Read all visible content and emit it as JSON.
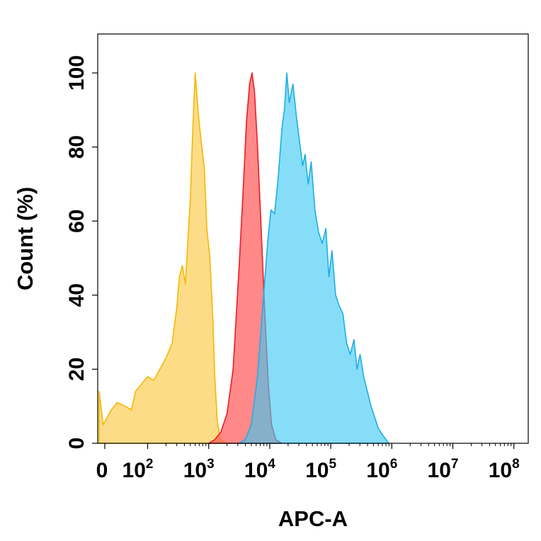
{
  "chart_data": {
    "type": "area",
    "title": "",
    "xlabel": "APC-A",
    "ylabel": "Count (%)",
    "x_scale": "biexponential (0 then log10)",
    "x_tick_labels": [
      {
        "base": "0",
        "exp": ""
      },
      {
        "base": "10",
        "exp": "2"
      },
      {
        "base": "10",
        "exp": "3"
      },
      {
        "base": "10",
        "exp": "4"
      },
      {
        "base": "10",
        "exp": "5"
      },
      {
        "base": "10",
        "exp": "6"
      },
      {
        "base": "10",
        "exp": "7"
      },
      {
        "base": "10",
        "exp": "8"
      }
    ],
    "x_ticks_log10": [
      null,
      2,
      3,
      4,
      5,
      6,
      7,
      8
    ],
    "y_ticks": [
      "0",
      "20",
      "40",
      "60",
      "80",
      "100"
    ],
    "ylim": [
      0,
      100
    ],
    "grid": false,
    "legend": "none",
    "series": [
      {
        "color": "#FCCB4F",
        "fill_opacity": 0.68,
        "stroke": "#F5B800",
        "points": [
          [
            0.0,
            14
          ],
          [
            0.2,
            5
          ],
          [
            0.6,
            9
          ],
          [
            0.9,
            11
          ],
          [
            1.3,
            10
          ],
          [
            1.6,
            9
          ],
          [
            1.8,
            14
          ],
          [
            2.0,
            18
          ],
          [
            2.1,
            17
          ],
          [
            2.2,
            20
          ],
          [
            2.3,
            23
          ],
          [
            2.35,
            25
          ],
          [
            2.4,
            27
          ],
          [
            2.48,
            37
          ],
          [
            2.52,
            45
          ],
          [
            2.57,
            48
          ],
          [
            2.62,
            43
          ],
          [
            2.66,
            55
          ],
          [
            2.7,
            66
          ],
          [
            2.74,
            85
          ],
          [
            2.78,
            100
          ],
          [
            2.83,
            89
          ],
          [
            2.88,
            81
          ],
          [
            2.93,
            74
          ],
          [
            2.97,
            58
          ],
          [
            3.02,
            50
          ],
          [
            3.07,
            33
          ],
          [
            3.1,
            18
          ],
          [
            3.14,
            6
          ],
          [
            3.18,
            2
          ],
          [
            3.22,
            0.5
          ],
          [
            3.3,
            0
          ]
        ]
      },
      {
        "color": "#FF5A5A",
        "fill_opacity": 0.72,
        "stroke": "#EE1C25",
        "points": [
          [
            3.0,
            0
          ],
          [
            3.1,
            1
          ],
          [
            3.2,
            3
          ],
          [
            3.3,
            8
          ],
          [
            3.4,
            20
          ],
          [
            3.5,
            48
          ],
          [
            3.57,
            70
          ],
          [
            3.62,
            87
          ],
          [
            3.67,
            97
          ],
          [
            3.71,
            100
          ],
          [
            3.75,
            95
          ],
          [
            3.8,
            80
          ],
          [
            3.86,
            58
          ],
          [
            3.92,
            35
          ],
          [
            3.98,
            15
          ],
          [
            4.03,
            5
          ],
          [
            4.1,
            1
          ],
          [
            4.2,
            0
          ]
        ]
      },
      {
        "color": "#3CC8F2",
        "fill_opacity": 0.62,
        "stroke": "#1EAEE6",
        "points": [
          [
            3.5,
            0
          ],
          [
            3.6,
            1
          ],
          [
            3.7,
            5
          ],
          [
            3.8,
            18
          ],
          [
            3.9,
            40
          ],
          [
            3.97,
            55
          ],
          [
            4.02,
            63
          ],
          [
            4.08,
            62
          ],
          [
            4.14,
            72
          ],
          [
            4.2,
            85
          ],
          [
            4.24,
            90
          ],
          [
            4.28,
            100
          ],
          [
            4.32,
            92
          ],
          [
            4.38,
            97
          ],
          [
            4.44,
            88
          ],
          [
            4.5,
            80
          ],
          [
            4.54,
            75
          ],
          [
            4.58,
            78
          ],
          [
            4.63,
            70
          ],
          [
            4.68,
            76
          ],
          [
            4.74,
            63
          ],
          [
            4.8,
            57
          ],
          [
            4.86,
            54
          ],
          [
            4.92,
            58
          ],
          [
            4.97,
            45
          ],
          [
            5.02,
            52
          ],
          [
            5.08,
            40
          ],
          [
            5.14,
            37
          ],
          [
            5.2,
            35
          ],
          [
            5.26,
            27
          ],
          [
            5.32,
            24
          ],
          [
            5.38,
            28
          ],
          [
            5.43,
            20
          ],
          [
            5.48,
            24
          ],
          [
            5.54,
            18
          ],
          [
            5.6,
            14
          ],
          [
            5.66,
            10
          ],
          [
            5.72,
            7
          ],
          [
            5.78,
            4
          ],
          [
            5.86,
            2
          ],
          [
            5.95,
            0
          ]
        ]
      }
    ]
  }
}
